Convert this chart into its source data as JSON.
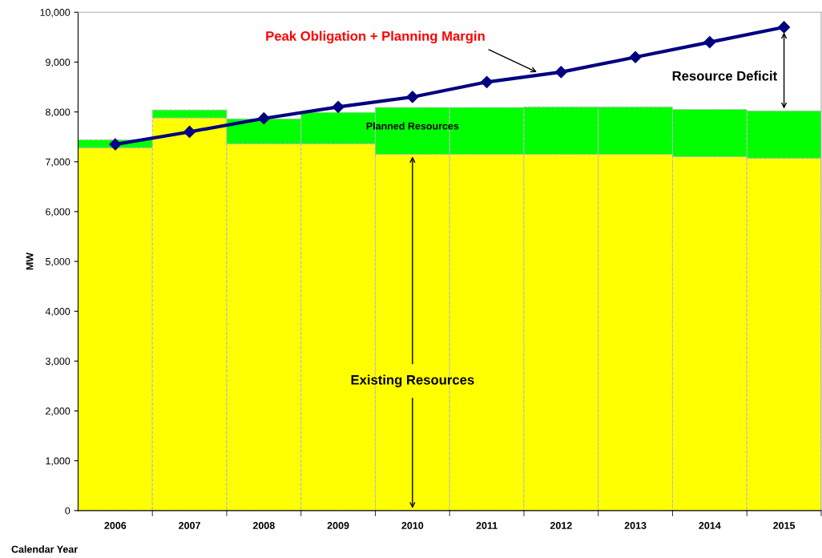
{
  "chart_data": {
    "type": "bar",
    "stacked": true,
    "xlabel": "Calendar Year",
    "ylabel": "MW",
    "categories": [
      "2006",
      "2007",
      "2008",
      "2009",
      "2010",
      "2011",
      "2012",
      "2013",
      "2014",
      "2015"
    ],
    "series": [
      {
        "name": "Existing Resources",
        "color": "#ffff00",
        "values": [
          7280,
          7880,
          7360,
          7360,
          7150,
          7150,
          7150,
          7150,
          7100,
          7070
        ]
      },
      {
        "name": "Planned Resources",
        "color": "#00ff00",
        "values": [
          160,
          160,
          500,
          630,
          940,
          940,
          950,
          950,
          950,
          950
        ]
      },
      {
        "name": "Peak Obligation + Planning Margin",
        "type": "line",
        "color": "#000080",
        "marker": "diamond",
        "values": [
          7350,
          7600,
          7870,
          8100,
          8300,
          8600,
          8800,
          9100,
          9400,
          9700
        ]
      }
    ],
    "annotations": [
      "Resource Deficit"
    ],
    "ylim": [
      0,
      10000
    ],
    "yticks": [
      0,
      {
        "value": 1000,
        "label": "1,000"
      },
      {
        "value": 2000,
        "label": "2,000"
      },
      {
        "value": 3000,
        "label": "3,000"
      },
      {
        "value": 4000,
        "label": "4,000"
      },
      {
        "value": 5000,
        "label": "5,000"
      },
      {
        "value": 6000,
        "label": "6,000"
      },
      {
        "value": 7000,
        "label": "7,000"
      },
      {
        "value": 8000,
        "label": "8,000"
      },
      {
        "value": 9000,
        "label": "9,000"
      },
      {
        "value": 10000,
        "label": "10,000"
      }
    ],
    "grid": false,
    "legend": false
  }
}
